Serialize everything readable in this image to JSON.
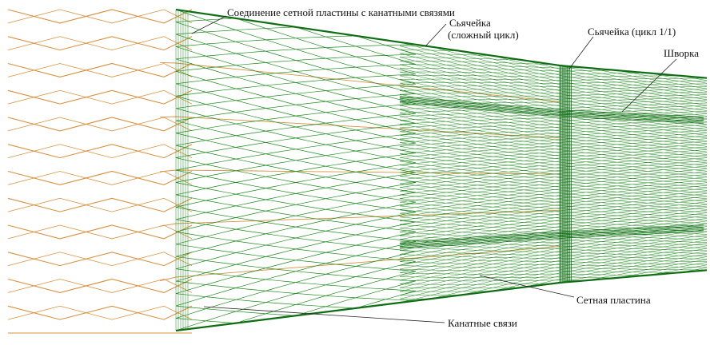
{
  "labels": {
    "joint": "Соединение сетной пластины с канатными связями",
    "seam_complex_1": "Сьячейка",
    "seam_complex_2": "(сложный цикл)",
    "seam_simple": "Сьячейка (цикл 1/1)",
    "shvorka": "Шворка",
    "net_panel": "Сетная пластина",
    "rope_links": "Канатные связи"
  },
  "colors": {
    "rope": "#d9913f",
    "net": "#1f8a1f",
    "net_dark": "#0f6d14",
    "text": "#111111"
  }
}
